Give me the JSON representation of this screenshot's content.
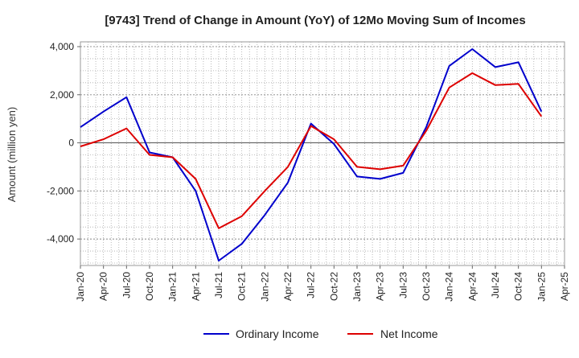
{
  "chart_data": {
    "type": "line",
    "title": "[9743]  Trend of Change in Amount (YoY) of 12Mo Moving Sum of Incomes",
    "ylabel": "Amount (million yen)",
    "xlabel": "",
    "ylim": [
      -5100,
      4200
    ],
    "yticks": [
      -4000,
      -2000,
      0,
      2000,
      4000
    ],
    "ytick_labels": [
      "-4,000",
      "-2,000",
      "0",
      "2,000",
      "4,000"
    ],
    "xtick_labels": [
      "Jan-20",
      "Apr-20",
      "Jul-20",
      "Oct-20",
      "Jan-21",
      "Apr-21",
      "Jul-21",
      "Oct-21",
      "Jan-22",
      "Apr-22",
      "Jul-22",
      "Oct-22",
      "Jan-23",
      "Apr-23",
      "Jul-23",
      "Oct-23",
      "Jan-24",
      "Apr-24",
      "Jul-24",
      "Oct-24",
      "Jan-25",
      "Apr-25"
    ],
    "x": [
      "Jan-20",
      "Apr-20",
      "Jul-20",
      "Oct-20",
      "Jan-21",
      "Apr-21",
      "Jul-21",
      "Oct-21",
      "Jan-22",
      "Apr-22",
      "Jul-22",
      "Oct-22",
      "Jan-23",
      "Apr-23",
      "Jul-23",
      "Oct-23",
      "Jan-24",
      "Apr-24",
      "Jul-24",
      "Oct-24",
      "Jan-25"
    ],
    "grid": true,
    "legend_position": "bottom-center",
    "series": [
      {
        "name": "Ordinary Income",
        "color": "#0000cc",
        "values": [
          650,
          1300,
          1900,
          -400,
          -600,
          -2000,
          -4900,
          -4200,
          -3000,
          -1650,
          800,
          -50,
          -1400,
          -1500,
          -1250,
          650,
          3200,
          3900,
          3150,
          3350,
          1300
        ]
      },
      {
        "name": "Net Income",
        "color": "#dd0000",
        "values": [
          -150,
          150,
          600,
          -500,
          -600,
          -1500,
          -3550,
          -3050,
          -2000,
          -1000,
          700,
          150,
          -1000,
          -1100,
          -950,
          500,
          2300,
          2900,
          2400,
          2450,
          1100
        ]
      }
    ]
  }
}
